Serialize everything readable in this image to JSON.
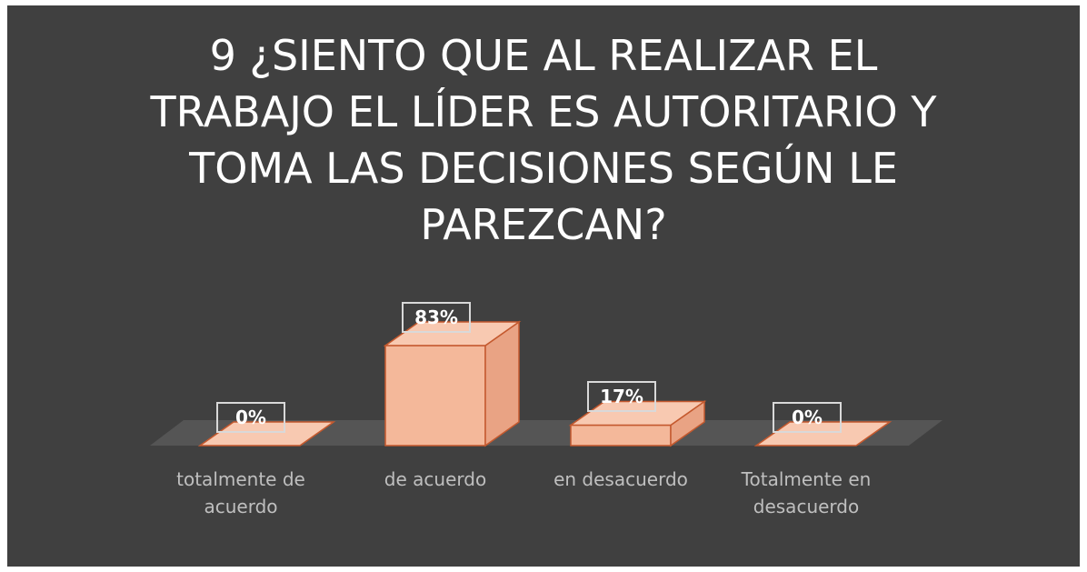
{
  "chart_data": {
    "type": "bar3d",
    "title": "9 ¿SIENTO QUE AL REALIZAR EL TRABAJO EL LÍDER ES AUTORITARIO Y TOMA  LAS DECISIONES SEGÚN LE PAREZCAN?",
    "categories": [
      "totalmente de acuerdo",
      "de acuerdo",
      "en desacuerdo",
      "Totalmente en desacuerdo"
    ],
    "values": [
      0,
      83,
      17,
      0
    ],
    "value_labels": [
      "0%",
      "83%",
      "17%",
      "0%"
    ],
    "color": "#f4b89a"
  }
}
